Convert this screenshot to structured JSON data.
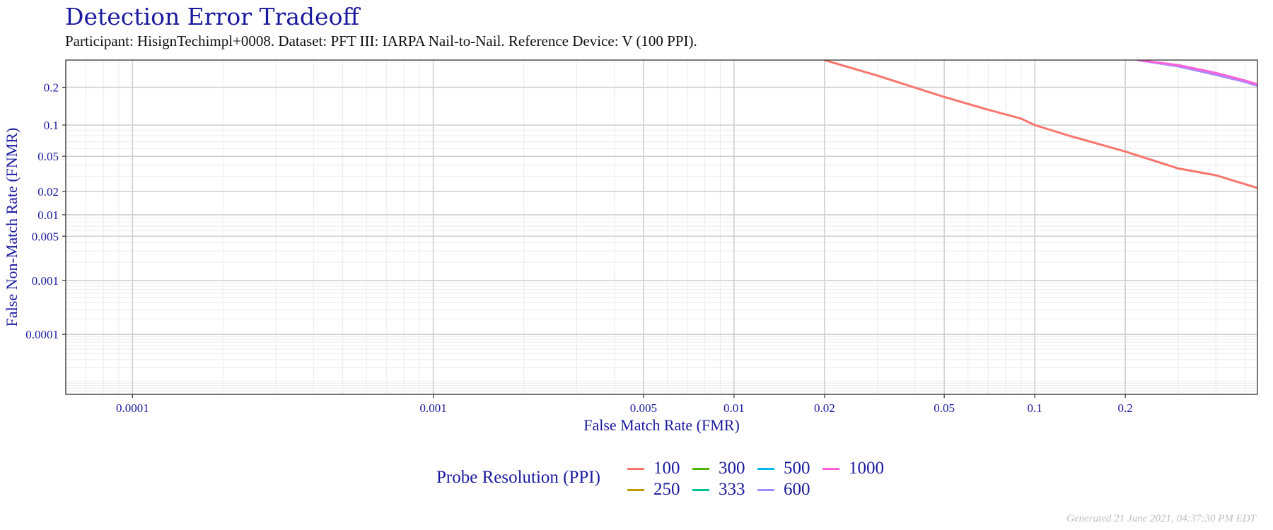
{
  "chart_data": {
    "type": "line",
    "title": "Detection Error Tradeoff",
    "subtitle": "Participant: HisignTechimpl+0008. Dataset: PFT III: IARPA Nail-to-Nail. Reference Device: V (100 PPI).",
    "xlabel": "False Match Rate (FMR)",
    "ylabel": "False Non-Match Rate (FNMR)",
    "x_scale": "log",
    "y_scale": "probit",
    "xlim": [
      6e-05,
      0.55
    ],
    "ylim": [
      5e-06,
      0.3
    ],
    "x_ticks": [
      0.0001,
      0.001,
      0.005,
      0.01,
      0.02,
      0.05,
      0.1,
      0.2
    ],
    "x_tick_labels": [
      "0.0001",
      "0.001",
      "0.005",
      "0.01",
      "0.02",
      "0.05",
      "0.1",
      "0.2"
    ],
    "y_ticks": [
      0.2,
      0.1,
      0.05,
      0.02,
      0.01,
      0.005,
      0.001,
      0.0001
    ],
    "y_tick_labels": [
      "0.2",
      "0.1",
      "0.05",
      "0.02",
      "0.01",
      "0.005",
      "0.001",
      "0.0001"
    ],
    "grid": true,
    "legend": {
      "title": "Probe Resolution (PPI)",
      "placement": "bottom",
      "entries": [
        {
          "label": "100",
          "color": "#F8766D"
        },
        {
          "label": "250",
          "color": "#C49A00"
        },
        {
          "label": "300",
          "color": "#53B400"
        },
        {
          "label": "333",
          "color": "#00C094"
        },
        {
          "label": "500",
          "color": "#00B6EB"
        },
        {
          "label": "600",
          "color": "#A58AFF"
        },
        {
          "label": "1000",
          "color": "#FB61D7"
        }
      ]
    },
    "series": [
      {
        "name": "100",
        "color": "#F8766D",
        "x": [
          0.02,
          0.03,
          0.05,
          0.07,
          0.09,
          0.1,
          0.13,
          0.2,
          0.3,
          0.4,
          0.55
        ],
        "y": [
          0.3,
          0.24,
          0.17,
          0.135,
          0.114,
          0.1,
          0.08,
          0.056,
          0.037,
          0.031,
          0.022
        ]
      },
      {
        "name": "600",
        "color": "#A58AFF",
        "x": [
          0.22,
          0.3,
          0.4,
          0.5,
          0.55
        ],
        "y": [
          0.3,
          0.275,
          0.243,
          0.218,
          0.205
        ]
      },
      {
        "name": "1000",
        "color": "#FB61D7",
        "x": [
          0.22,
          0.3,
          0.4,
          0.5,
          0.55
        ],
        "y": [
          0.3,
          0.28,
          0.25,
          0.223,
          0.21
        ]
      }
    ]
  },
  "caption": "Generated 21 June 2021, 04:37:30 PM EDT"
}
